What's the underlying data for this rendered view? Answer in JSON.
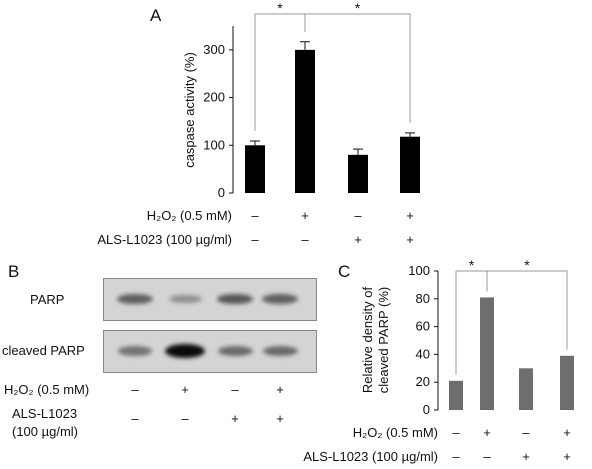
{
  "chart_data": [
    {
      "panel": "A",
      "type": "bar",
      "ylabel": "caspase activity (%)",
      "ylim": [
        0,
        350
      ],
      "yticks": [
        "0",
        "100",
        "200",
        "300"
      ],
      "values": [
        100,
        300,
        80,
        118
      ],
      "errors": [
        9,
        17,
        12,
        8
      ],
      "colors": {
        "bar": "#000000",
        "bracket": "#999999"
      },
      "significance": [
        {
          "from": 0,
          "to": 1,
          "label": "*"
        },
        {
          "from": 1,
          "to": 3,
          "label": "*"
        }
      ],
      "conditions": [
        {
          "label": "H₂O₂ (0.5 mM)",
          "signs": [
            "–",
            "+",
            "–",
            "+"
          ]
        },
        {
          "label": "ALS-L1023 (100 µg/ml)",
          "signs": [
            "–",
            "–",
            "+",
            "+"
          ]
        }
      ]
    },
    {
      "panel": "C",
      "type": "bar",
      "ylabel_lines": [
        "Relative density of",
        "cleaved PARP (%)"
      ],
      "ylim": [
        0,
        100
      ],
      "yticks": [
        "0",
        "20",
        "40",
        "60",
        "80",
        "100"
      ],
      "values": [
        21,
        81,
        30,
        39
      ],
      "colors": {
        "bar": "#6e6e6e",
        "bracket": "#999999"
      },
      "significance": [
        {
          "from": 0,
          "to": 1,
          "label": "*"
        },
        {
          "from": 1,
          "to": 3,
          "label": "*"
        }
      ],
      "conditions": [
        {
          "label": "H₂O₂ (0.5 mM)",
          "signs": [
            "–",
            "+",
            "–",
            "+"
          ]
        },
        {
          "label": "ALS-L1023 (100 µg/ml)",
          "signs": [
            "–",
            "–",
            "+",
            "+"
          ]
        }
      ]
    }
  ],
  "blot": {
    "panel": "B",
    "rows": [
      {
        "label": "PARP",
        "band_intensity": [
          0.55,
          0.3,
          0.6,
          0.55
        ]
      },
      {
        "label": "cleaved PARP",
        "band_intensity": [
          0.45,
          1.0,
          0.5,
          0.5
        ]
      }
    ],
    "conditions": [
      {
        "label": "H₂O₂ (0.5 mM)",
        "signs": [
          "–",
          "+",
          "–",
          "+"
        ]
      },
      {
        "label_lines": [
          "ALS-L1023",
          "(100 µg/ml)"
        ],
        "signs": [
          "–",
          "–",
          "+",
          "+"
        ]
      }
    ]
  }
}
